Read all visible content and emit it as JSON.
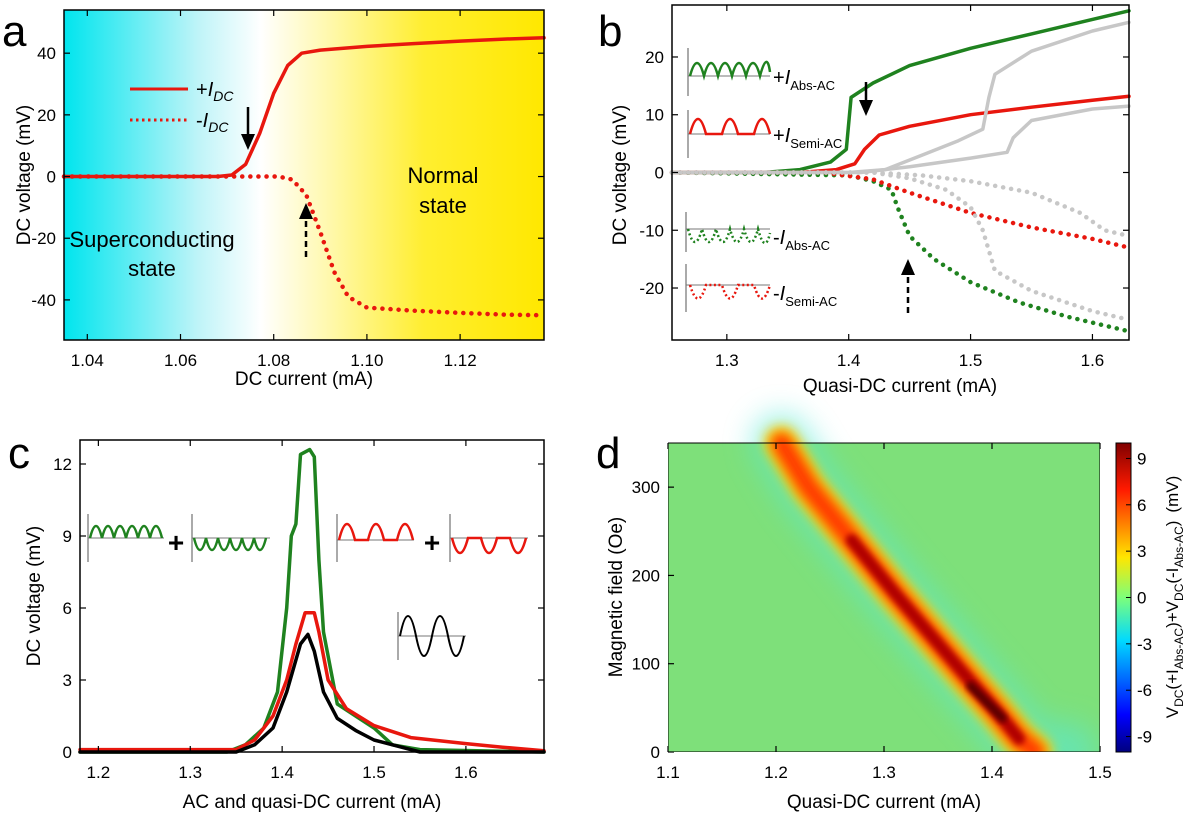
{
  "colors": {
    "red": "#e8170e",
    "green": "#1f821f",
    "gray": "#c7c7c7",
    "black": "#000000"
  },
  "chart_data": [
    {
      "panel": "a",
      "type": "line",
      "xlabel": "DC current (mA)",
      "ylabel": "DC voltage (mV)",
      "xlim": [
        1.035,
        1.138
      ],
      "ylim": [
        -53,
        54
      ],
      "xticks": [
        "1.04",
        "1.06",
        "1.08",
        "1.10",
        "1.12"
      ],
      "yticks": [
        "40",
        "20",
        "0",
        "-20",
        "-40"
      ],
      "background": "cyan (superconducting) to white to yellow (normal) gradient",
      "annotations": {
        "superconducting": [
          "Superconducting",
          "state"
        ],
        "normal": [
          "Normal",
          "state"
        ]
      },
      "legend": {
        "pos_prefix": "+",
        "neg_prefix": "-",
        "symbol": "I",
        "subscript": "DC"
      },
      "series": [
        {
          "name": "+I_DC",
          "style": "solid",
          "color": "red",
          "points": [
            [
              1.035,
              0
            ],
            [
              1.068,
              0
            ],
            [
              1.071,
              0.5
            ],
            [
              1.074,
              4
            ],
            [
              1.077,
              14
            ],
            [
              1.08,
              27
            ],
            [
              1.083,
              36
            ],
            [
              1.086,
              40
            ],
            [
              1.09,
              41
            ],
            [
              1.1,
              42.2
            ],
            [
              1.11,
              43.1
            ],
            [
              1.12,
              43.9
            ],
            [
              1.13,
              44.6
            ],
            [
              1.138,
              45
            ]
          ]
        },
        {
          "name": "-I_DC",
          "style": "dotted",
          "color": "red",
          "points": [
            [
              1.035,
              0
            ],
            [
              1.081,
              0
            ],
            [
              1.084,
              -1
            ],
            [
              1.087,
              -6
            ],
            [
              1.09,
              -18
            ],
            [
              1.093,
              -31
            ],
            [
              1.096,
              -39
            ],
            [
              1.1,
              -42.5
            ],
            [
              1.11,
              -43.5
            ],
            [
              1.12,
              -44.2
            ],
            [
              1.13,
              -44.8
            ],
            [
              1.138,
              -45
            ]
          ]
        }
      ]
    },
    {
      "panel": "b",
      "type": "line",
      "xlabel": "Quasi-DC current (mA)",
      "ylabel": "DC voltage (mV)",
      "xlim": [
        1.255,
        1.63
      ],
      "ylim": [
        -29,
        29
      ],
      "xticks": [
        "1.3",
        "1.4",
        "1.5",
        "1.6"
      ],
      "yticks": [
        "20",
        "10",
        "0",
        "-10",
        "-20"
      ],
      "legend_labels": [
        {
          "sign": "+",
          "symbol": "I",
          "subscript": "Abs-AC"
        },
        {
          "sign": "+",
          "symbol": "I",
          "subscript": "Semi-AC"
        },
        {
          "sign": "-",
          "symbol": "I",
          "subscript": "Abs-AC"
        },
        {
          "sign": "-",
          "symbol": "I",
          "subscript": "Semi-AC"
        }
      ],
      "series": [
        {
          "name": "+I_Abs-AC",
          "style": "solid",
          "color": "green",
          "points": [
            [
              1.255,
              0
            ],
            [
              1.33,
              0
            ],
            [
              1.36,
              0.5
            ],
            [
              1.385,
              1.8
            ],
            [
              1.398,
              4
            ],
            [
              1.402,
              13
            ],
            [
              1.42,
              15.5
            ],
            [
              1.45,
              18.5
            ],
            [
              1.5,
              21.5
            ],
            [
              1.55,
              24
            ],
            [
              1.6,
              26.5
            ],
            [
              1.63,
              28
            ]
          ]
        },
        {
          "name": "+I_Semi-AC",
          "style": "solid",
          "color": "red",
          "points": [
            [
              1.255,
              0
            ],
            [
              1.36,
              0
            ],
            [
              1.39,
              0.5
            ],
            [
              1.405,
              1.5
            ],
            [
              1.413,
              4
            ],
            [
              1.425,
              6.5
            ],
            [
              1.45,
              8
            ],
            [
              1.5,
              10
            ],
            [
              1.55,
              11.3
            ],
            [
              1.6,
              12.5
            ],
            [
              1.63,
              13.2
            ]
          ]
        },
        {
          "name": "gray +a",
          "style": "solid",
          "color": "gray",
          "points": [
            [
              1.255,
              0
            ],
            [
              1.4,
              0
            ],
            [
              1.43,
              0.5
            ],
            [
              1.46,
              3
            ],
            [
              1.49,
              5.5
            ],
            [
              1.51,
              7.5
            ],
            [
              1.515,
              13
            ],
            [
              1.52,
              17
            ],
            [
              1.55,
              21
            ],
            [
              1.6,
              24.5
            ],
            [
              1.63,
              26
            ]
          ]
        },
        {
          "name": "gray +b",
          "style": "solid",
          "color": "gray",
          "points": [
            [
              1.255,
              0
            ],
            [
              1.41,
              0
            ],
            [
              1.45,
              1
            ],
            [
              1.5,
              2.5
            ],
            [
              1.53,
              3.5
            ],
            [
              1.535,
              6
            ],
            [
              1.55,
              9
            ],
            [
              1.6,
              11
            ],
            [
              1.63,
              11.5
            ]
          ]
        },
        {
          "name": "-I_Abs-AC",
          "style": "dotted",
          "color": "green",
          "points": [
            [
              1.255,
              0
            ],
            [
              1.4,
              -0.5
            ],
            [
              1.42,
              -1.5
            ],
            [
              1.435,
              -3
            ],
            [
              1.44,
              -6
            ],
            [
              1.45,
              -11
            ],
            [
              1.47,
              -15
            ],
            [
              1.5,
              -19
            ],
            [
              1.54,
              -22.5
            ],
            [
              1.58,
              -25
            ],
            [
              1.63,
              -27.5
            ]
          ]
        },
        {
          "name": "-I_Semi-AC",
          "style": "dotted",
          "color": "red",
          "points": [
            [
              1.255,
              0
            ],
            [
              1.38,
              0
            ],
            [
              1.42,
              -1.2
            ],
            [
              1.45,
              -3.5
            ],
            [
              1.5,
              -7
            ],
            [
              1.55,
              -9.5
            ],
            [
              1.6,
              -11.5
            ],
            [
              1.63,
              -13
            ]
          ]
        },
        {
          "name": "gray -a",
          "style": "dotted",
          "color": "gray",
          "points": [
            [
              1.255,
              0
            ],
            [
              1.42,
              0
            ],
            [
              1.45,
              -1
            ],
            [
              1.48,
              -3
            ],
            [
              1.5,
              -6
            ],
            [
              1.51,
              -10
            ],
            [
              1.52,
              -17
            ],
            [
              1.55,
              -20.5
            ],
            [
              1.6,
              -24
            ],
            [
              1.63,
              -25.5
            ]
          ]
        },
        {
          "name": "gray -b",
          "style": "dotted",
          "color": "gray",
          "points": [
            [
              1.255,
              0
            ],
            [
              1.42,
              0
            ],
            [
              1.46,
              -0.5
            ],
            [
              1.5,
              -1.5
            ],
            [
              1.55,
              -3.5
            ],
            [
              1.59,
              -7
            ],
            [
              1.61,
              -10
            ],
            [
              1.63,
              -11
            ]
          ]
        }
      ]
    },
    {
      "panel": "c",
      "type": "line",
      "xlabel": "AC and quasi-DC current (mA)",
      "ylabel": "DC voltage (mV)",
      "xlim": [
        1.18,
        1.685
      ],
      "ylim": [
        0,
        13
      ],
      "xticks": [
        "1.2",
        "1.3",
        "1.4",
        "1.5",
        "1.6"
      ],
      "yticks": [
        "12",
        "9",
        "6",
        "3",
        "0"
      ],
      "operators": [
        "+",
        "+"
      ],
      "series": [
        {
          "name": "green sum",
          "color": "green",
          "points": [
            [
              1.18,
              0
            ],
            [
              1.34,
              0
            ],
            [
              1.36,
              0.3
            ],
            [
              1.38,
              1
            ],
            [
              1.395,
              2.5
            ],
            [
              1.405,
              6
            ],
            [
              1.41,
              9
            ],
            [
              1.415,
              9.5
            ],
            [
              1.42,
              12.4
            ],
            [
              1.43,
              12.6
            ],
            [
              1.435,
              12.3
            ],
            [
              1.44,
              8
            ],
            [
              1.445,
              5
            ],
            [
              1.46,
              2
            ],
            [
              1.48,
              1.5
            ],
            [
              1.5,
              1
            ],
            [
              1.52,
              0.3
            ],
            [
              1.55,
              0.1
            ],
            [
              1.685,
              0
            ]
          ]
        },
        {
          "name": "red sum",
          "color": "red",
          "points": [
            [
              1.18,
              0.1
            ],
            [
              1.35,
              0.1
            ],
            [
              1.37,
              0.5
            ],
            [
              1.39,
              1.5
            ],
            [
              1.405,
              3
            ],
            [
              1.415,
              4.5
            ],
            [
              1.425,
              5.8
            ],
            [
              1.435,
              5.8
            ],
            [
              1.44,
              5
            ],
            [
              1.45,
              3
            ],
            [
              1.47,
              1.8
            ],
            [
              1.5,
              1.1
            ],
            [
              1.54,
              0.6
            ],
            [
              1.6,
              0.35
            ],
            [
              1.64,
              0.2
            ],
            [
              1.685,
              0.05
            ]
          ]
        },
        {
          "name": "black",
          "color": "black",
          "points": [
            [
              1.18,
              0
            ],
            [
              1.35,
              0
            ],
            [
              1.37,
              0.3
            ],
            [
              1.39,
              1
            ],
            [
              1.405,
              2.5
            ],
            [
              1.42,
              4.5
            ],
            [
              1.428,
              4.9
            ],
            [
              1.435,
              4.2
            ],
            [
              1.445,
              2.5
            ],
            [
              1.46,
              1.4
            ],
            [
              1.48,
              0.9
            ],
            [
              1.5,
              0.5
            ],
            [
              1.53,
              0.2
            ],
            [
              1.55,
              0
            ],
            [
              1.685,
              0
            ]
          ]
        }
      ]
    },
    {
      "panel": "d",
      "type": "heatmap",
      "xlabel": "Quasi-DC current (mA)",
      "ylabel": "Magnetic field (Oe)",
      "xlim": [
        1.1,
        1.5
      ],
      "ylim": [
        0,
        350
      ],
      "xticks": [
        "1.1",
        "1.2",
        "1.3",
        "1.4",
        "1.5"
      ],
      "yticks": [
        "300",
        "200",
        "100",
        "0"
      ],
      "colorbar": {
        "ticks": [
          "9",
          "6",
          "3",
          "0",
          "-3",
          "-6",
          "-9"
        ],
        "range": [
          -10,
          10
        ],
        "unit": "(mV)",
        "label_parts": [
          "V",
          "DC",
          "(+I",
          "Abs-AC",
          ")+V",
          "DC",
          "(-I",
          "Abs-AC",
          ")"
        ]
      },
      "ridge": [
        [
          1.205,
          350
        ],
        [
          1.23,
          300
        ],
        [
          1.27,
          240
        ],
        [
          1.31,
          180
        ],
        [
          1.345,
          130
        ],
        [
          1.38,
          80
        ],
        [
          1.405,
          45
        ],
        [
          1.425,
          15
        ],
        [
          1.44,
          0
        ]
      ]
    }
  ],
  "panel_letters": {
    "a": "a",
    "b": "b",
    "c": "c",
    "d": "d"
  }
}
